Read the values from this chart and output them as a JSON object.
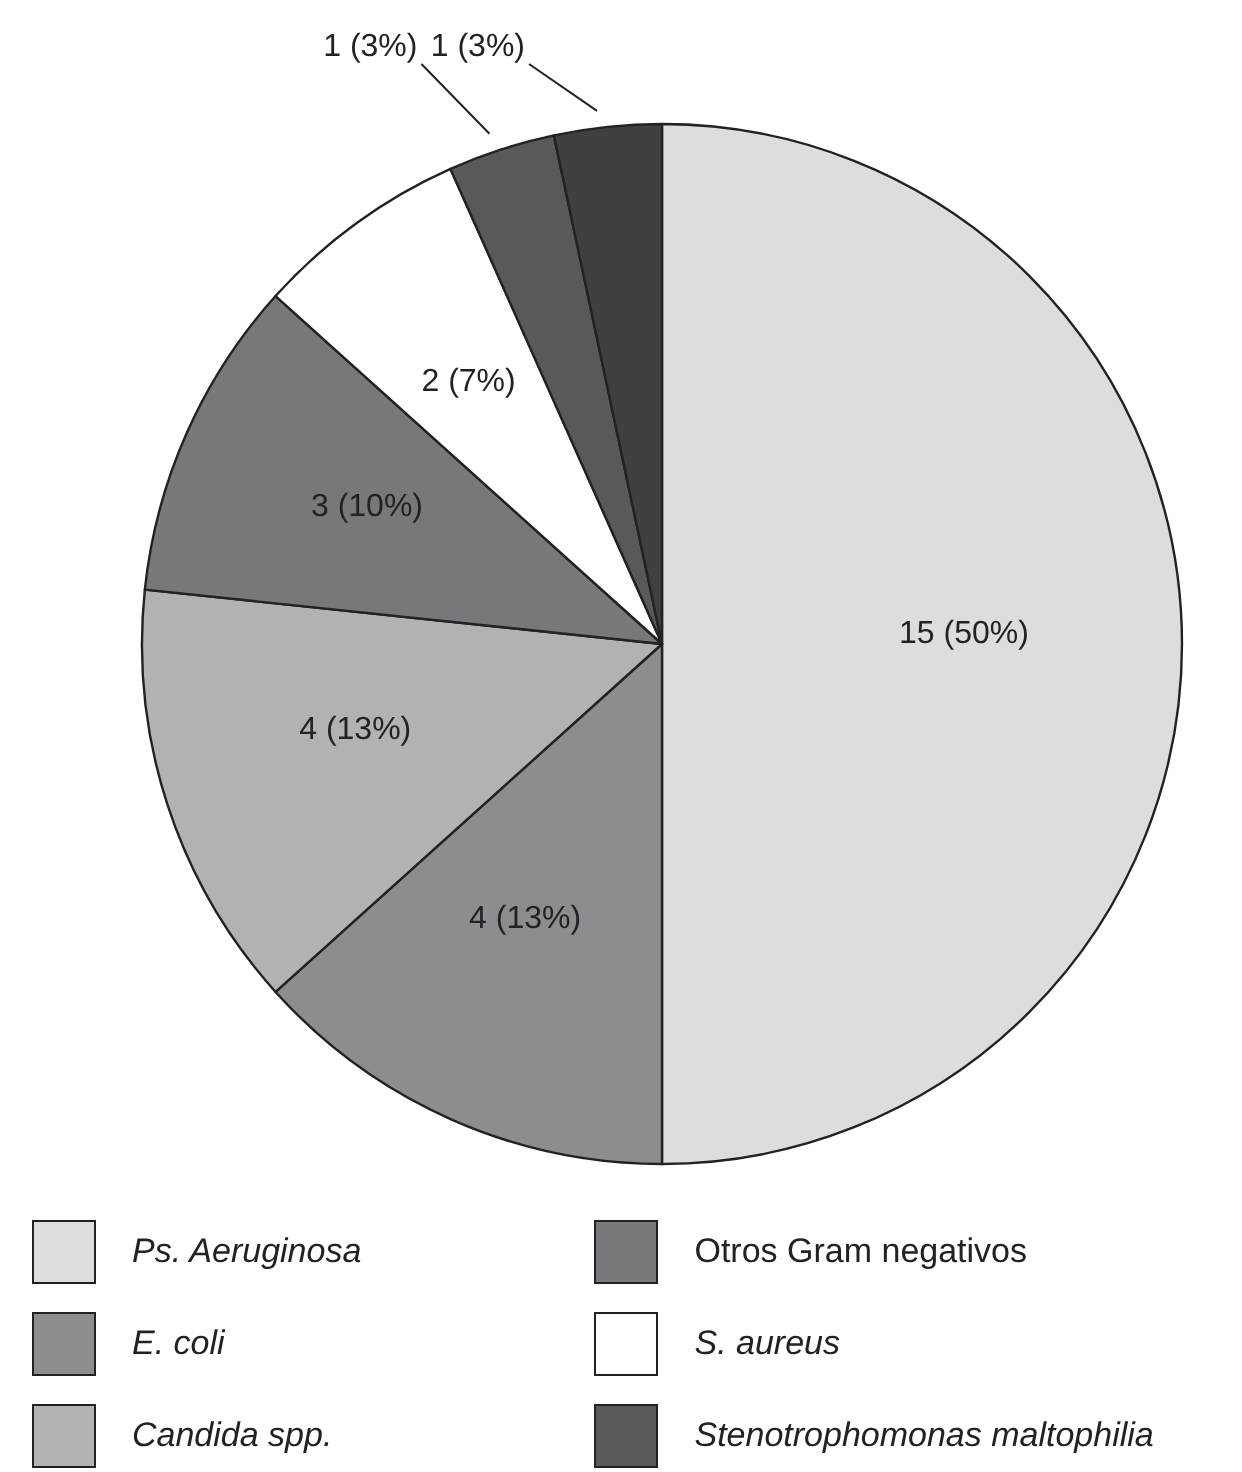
{
  "chart_data": {
    "type": "pie",
    "categories": [
      "Ps. Aeruginosa",
      "E. coli",
      "Candida spp.",
      "Otros Gram negativos",
      "S. aureus",
      "Stenotrophomonas maltophilia",
      null
    ],
    "values": [
      15,
      4,
      4,
      3,
      2,
      1,
      1
    ],
    "colors": [
      "#dcdddf",
      "#8c8d90",
      "#b1b2b4",
      "#77787b",
      "#ffffff",
      "#58595b",
      "#404041"
    ],
    "value_labels": [
      "15 (50%)",
      "4 (13%)",
      "4 (13%)",
      "3 (10%)",
      "2 (7%)",
      "1 (3%)",
      "1 (3%)"
    ],
    "legend": "bottom"
  }
}
